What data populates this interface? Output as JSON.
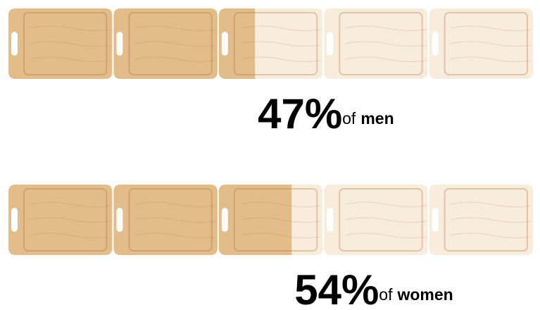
{
  "chart_data": {
    "type": "pictograph",
    "categories": [
      "men",
      "women"
    ],
    "values": [
      47,
      54
    ],
    "value_labels": [
      "47%",
      "54%"
    ],
    "category_prefix": "of",
    "icons": 5,
    "xlim": [
      0,
      100
    ],
    "color": "#e2bd8a",
    "empty_color": "#f8ecdc"
  }
}
